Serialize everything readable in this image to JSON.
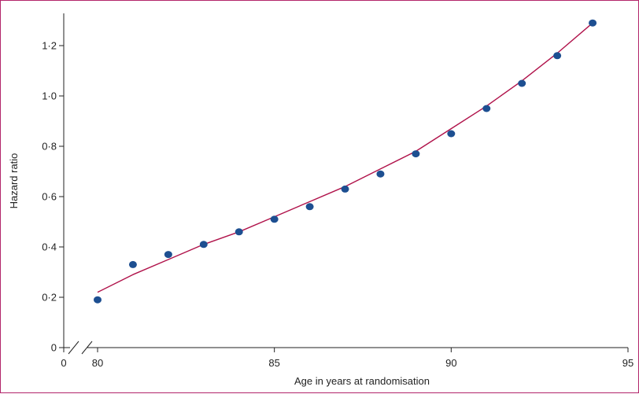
{
  "chart_data": {
    "type": "scatter",
    "xlabel": "Age in years at randomisation",
    "ylabel": "Hazard ratio",
    "x_break": true,
    "xlim": [
      79,
      95
    ],
    "ylim": [
      0,
      1.3
    ],
    "x_ticks": [
      {
        "value": 0,
        "label": "0"
      },
      {
        "value": 80,
        "label": "80"
      },
      {
        "value": 85,
        "label": "85"
      },
      {
        "value": 90,
        "label": "90"
      },
      {
        "value": 95,
        "label": "95"
      }
    ],
    "y_ticks": [
      {
        "value": 0,
        "label": "0"
      },
      {
        "value": 0.2,
        "label": "0·2"
      },
      {
        "value": 0.4,
        "label": "0·4"
      },
      {
        "value": 0.6,
        "label": "0·6"
      },
      {
        "value": 0.8,
        "label": "0·8"
      },
      {
        "value": 1.0,
        "label": "1·0"
      },
      {
        "value": 1.2,
        "label": "1·2"
      }
    ],
    "series": [
      {
        "kind": "points",
        "color": "#1d4f91",
        "x": [
          80,
          81,
          82,
          83,
          84,
          85,
          86,
          87,
          88,
          89,
          90,
          91,
          92,
          93,
          94
        ],
        "y": [
          0.19,
          0.33,
          0.37,
          0.41,
          0.46,
          0.51,
          0.56,
          0.63,
          0.69,
          0.77,
          0.85,
          0.95,
          1.05,
          1.16,
          1.29
        ]
      },
      {
        "kind": "fitted_line",
        "color": "#b0124a",
        "x": [
          80,
          81,
          82,
          83,
          84,
          85,
          86,
          87,
          88,
          89,
          90,
          91,
          92,
          93,
          94
        ],
        "y": [
          0.22,
          0.29,
          0.35,
          0.41,
          0.46,
          0.52,
          0.58,
          0.64,
          0.71,
          0.78,
          0.87,
          0.96,
          1.06,
          1.17,
          1.29
        ]
      }
    ],
    "grid": false,
    "legend": "none"
  }
}
